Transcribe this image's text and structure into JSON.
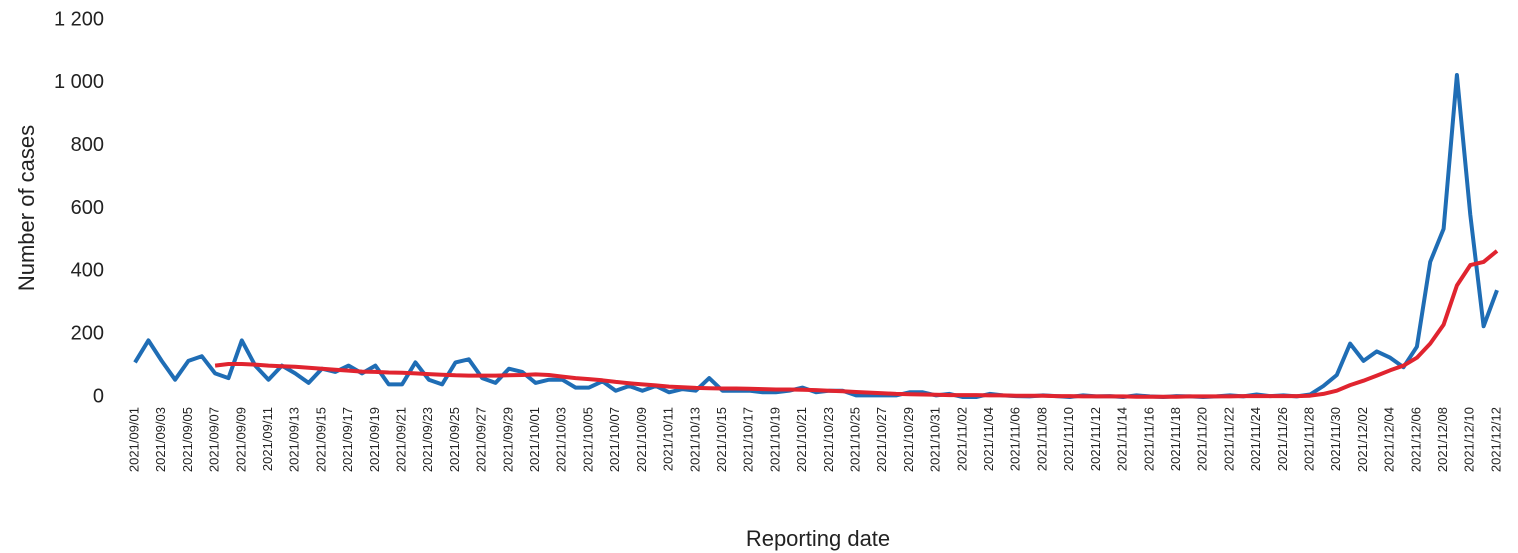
{
  "chart_data": {
    "type": "line",
    "x_label": "Reporting date",
    "y_label": "Number of cases",
    "categories": [
      "2021/09/01",
      null,
      "2021/09/03",
      null,
      "2021/09/05",
      null,
      "2021/09/07",
      null,
      "2021/09/09",
      null,
      "2021/09/11",
      null,
      "2021/09/13",
      null,
      "2021/09/15",
      null,
      "2021/09/17",
      null,
      "2021/09/19",
      null,
      "2021/09/21",
      null,
      "2021/09/23",
      null,
      "2021/09/25",
      null,
      "2021/09/27",
      null,
      "2021/09/29",
      null,
      "2021/10/01",
      null,
      "2021/10/03",
      null,
      "2021/10/05",
      null,
      "2021/10/07",
      null,
      "2021/10/09",
      null,
      "2021/10/11",
      null,
      "2021/10/13",
      null,
      "2021/10/15",
      null,
      "2021/10/17",
      null,
      "2021/10/19",
      null,
      "2021/10/21",
      null,
      "2021/10/23",
      null,
      "2021/10/25",
      null,
      "2021/10/27",
      null,
      "2021/10/29",
      null,
      "2021/10/31",
      null,
      "2021/11/02",
      null,
      "2021/11/04",
      null,
      "2021/11/06",
      null,
      "2021/11/08",
      null,
      "2021/11/10",
      null,
      "2021/11/12",
      null,
      "2021/11/14",
      null,
      "2021/11/16",
      null,
      "2021/11/18",
      null,
      "2021/11/20",
      null,
      "2021/11/22",
      null,
      "2021/11/24",
      null,
      "2021/11/26",
      null,
      "2021/11/28",
      null,
      "2021/11/30",
      null,
      "2021/12/02",
      null,
      "2021/12/04",
      null,
      "2021/12/06",
      null,
      "2021/12/08",
      null,
      "2021/12/10",
      null,
      "2021/12/12"
    ],
    "series": [
      {
        "color": "#1f6db5",
        "values": [
          110,
          180,
          115,
          55,
          115,
          130,
          75,
          60,
          180,
          100,
          55,
          100,
          75,
          45,
          90,
          80,
          100,
          75,
          100,
          40,
          40,
          110,
          55,
          40,
          110,
          120,
          60,
          45,
          90,
          80,
          45,
          55,
          55,
          30,
          30,
          50,
          20,
          35,
          20,
          35,
          15,
          25,
          20,
          60,
          20,
          20,
          20,
          15,
          15,
          20,
          30,
          15,
          20,
          20,
          5,
          5,
          5,
          5,
          15,
          15,
          5,
          10,
          0,
          0,
          10,
          5,
          3,
          2,
          5,
          3,
          0,
          5,
          2,
          3,
          0,
          5,
          2,
          0,
          3,
          2,
          0,
          2,
          5,
          2,
          8,
          3,
          5,
          2,
          8,
          35,
          70,
          170,
          115,
          145,
          125,
          95,
          160,
          430,
          535,
          1025,
          580,
          225,
          340
        ]
      },
      {
        "color": "#e0242f",
        "values": [
          null,
          null,
          null,
          null,
          null,
          null,
          100,
          105,
          105,
          103,
          100,
          98,
          96,
          93,
          90,
          87,
          84,
          81,
          80,
          78,
          77,
          75,
          73,
          71,
          69,
          68,
          68,
          68,
          69,
          70,
          72,
          70,
          65,
          60,
          57,
          53,
          48,
          44,
          40,
          37,
          33,
          31,
          29,
          28,
          27,
          27,
          26,
          25,
          24,
          24,
          23,
          22,
          20,
          18,
          16,
          14,
          12,
          10,
          9,
          8,
          7,
          6,
          6,
          6,
          5,
          5,
          4,
          4,
          4,
          3,
          3,
          2,
          2,
          2,
          2,
          1,
          1,
          1,
          1,
          2,
          2,
          2,
          2,
          3,
          3,
          3,
          3,
          3,
          4,
          10,
          20,
          38,
          52,
          68,
          85,
          100,
          125,
          170,
          230,
          355,
          420,
          430,
          465
        ]
      }
    ],
    "ylim": [
      0,
      1200
    ],
    "yticks": [
      0,
      200,
      400,
      600,
      800,
      {
        "value": 1000,
        "label": "1 000"
      },
      {
        "value": 1200,
        "label": "1 200"
      }
    ],
    "grid": false
  }
}
